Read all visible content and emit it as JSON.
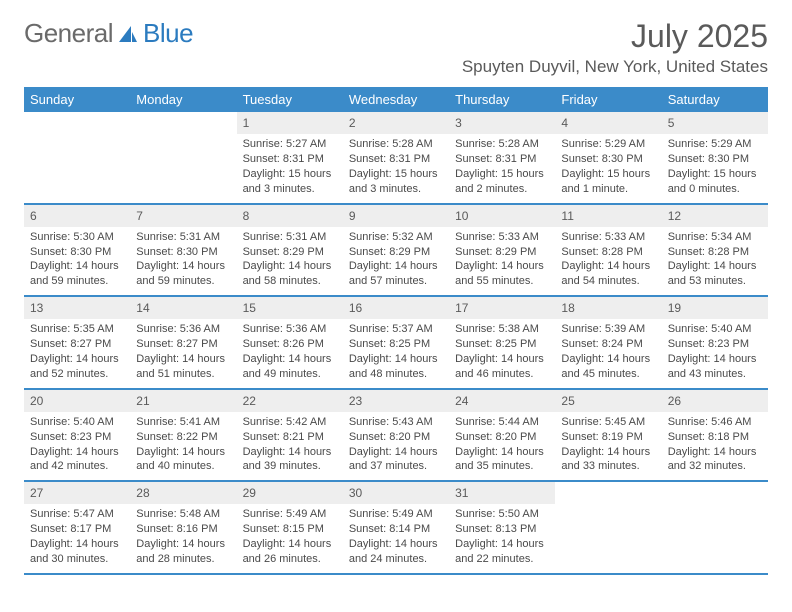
{
  "logo": {
    "part1": "General",
    "part2": "Blue"
  },
  "title": "July 2025",
  "location": "Spuyten Duyvil, New York, United States",
  "colors": {
    "header_bg": "#3b8bc9",
    "header_text": "#ffffff",
    "daynum_bg": "#eeeeee",
    "border": "#3b8bc9",
    "logo_gray": "#6a6a6a",
    "logo_blue": "#2b7bbf"
  },
  "weekdays": [
    "Sunday",
    "Monday",
    "Tuesday",
    "Wednesday",
    "Thursday",
    "Friday",
    "Saturday"
  ],
  "weeks": [
    [
      {
        "empty": true
      },
      {
        "empty": true
      },
      {
        "num": "1",
        "sunrise": "5:27 AM",
        "sunset": "8:31 PM",
        "daylight": "15 hours and 3 minutes."
      },
      {
        "num": "2",
        "sunrise": "5:28 AM",
        "sunset": "8:31 PM",
        "daylight": "15 hours and 3 minutes."
      },
      {
        "num": "3",
        "sunrise": "5:28 AM",
        "sunset": "8:31 PM",
        "daylight": "15 hours and 2 minutes."
      },
      {
        "num": "4",
        "sunrise": "5:29 AM",
        "sunset": "8:30 PM",
        "daylight": "15 hours and 1 minute."
      },
      {
        "num": "5",
        "sunrise": "5:29 AM",
        "sunset": "8:30 PM",
        "daylight": "15 hours and 0 minutes."
      }
    ],
    [
      {
        "num": "6",
        "sunrise": "5:30 AM",
        "sunset": "8:30 PM",
        "daylight": "14 hours and 59 minutes."
      },
      {
        "num": "7",
        "sunrise": "5:31 AM",
        "sunset": "8:30 PM",
        "daylight": "14 hours and 59 minutes."
      },
      {
        "num": "8",
        "sunrise": "5:31 AM",
        "sunset": "8:29 PM",
        "daylight": "14 hours and 58 minutes."
      },
      {
        "num": "9",
        "sunrise": "5:32 AM",
        "sunset": "8:29 PM",
        "daylight": "14 hours and 57 minutes."
      },
      {
        "num": "10",
        "sunrise": "5:33 AM",
        "sunset": "8:29 PM",
        "daylight": "14 hours and 55 minutes."
      },
      {
        "num": "11",
        "sunrise": "5:33 AM",
        "sunset": "8:28 PM",
        "daylight": "14 hours and 54 minutes."
      },
      {
        "num": "12",
        "sunrise": "5:34 AM",
        "sunset": "8:28 PM",
        "daylight": "14 hours and 53 minutes."
      }
    ],
    [
      {
        "num": "13",
        "sunrise": "5:35 AM",
        "sunset": "8:27 PM",
        "daylight": "14 hours and 52 minutes."
      },
      {
        "num": "14",
        "sunrise": "5:36 AM",
        "sunset": "8:27 PM",
        "daylight": "14 hours and 51 minutes."
      },
      {
        "num": "15",
        "sunrise": "5:36 AM",
        "sunset": "8:26 PM",
        "daylight": "14 hours and 49 minutes."
      },
      {
        "num": "16",
        "sunrise": "5:37 AM",
        "sunset": "8:25 PM",
        "daylight": "14 hours and 48 minutes."
      },
      {
        "num": "17",
        "sunrise": "5:38 AM",
        "sunset": "8:25 PM",
        "daylight": "14 hours and 46 minutes."
      },
      {
        "num": "18",
        "sunrise": "5:39 AM",
        "sunset": "8:24 PM",
        "daylight": "14 hours and 45 minutes."
      },
      {
        "num": "19",
        "sunrise": "5:40 AM",
        "sunset": "8:23 PM",
        "daylight": "14 hours and 43 minutes."
      }
    ],
    [
      {
        "num": "20",
        "sunrise": "5:40 AM",
        "sunset": "8:23 PM",
        "daylight": "14 hours and 42 minutes."
      },
      {
        "num": "21",
        "sunrise": "5:41 AM",
        "sunset": "8:22 PM",
        "daylight": "14 hours and 40 minutes."
      },
      {
        "num": "22",
        "sunrise": "5:42 AM",
        "sunset": "8:21 PM",
        "daylight": "14 hours and 39 minutes."
      },
      {
        "num": "23",
        "sunrise": "5:43 AM",
        "sunset": "8:20 PM",
        "daylight": "14 hours and 37 minutes."
      },
      {
        "num": "24",
        "sunrise": "5:44 AM",
        "sunset": "8:20 PM",
        "daylight": "14 hours and 35 minutes."
      },
      {
        "num": "25",
        "sunrise": "5:45 AM",
        "sunset": "8:19 PM",
        "daylight": "14 hours and 33 minutes."
      },
      {
        "num": "26",
        "sunrise": "5:46 AM",
        "sunset": "8:18 PM",
        "daylight": "14 hours and 32 minutes."
      }
    ],
    [
      {
        "num": "27",
        "sunrise": "5:47 AM",
        "sunset": "8:17 PM",
        "daylight": "14 hours and 30 minutes."
      },
      {
        "num": "28",
        "sunrise": "5:48 AM",
        "sunset": "8:16 PM",
        "daylight": "14 hours and 28 minutes."
      },
      {
        "num": "29",
        "sunrise": "5:49 AM",
        "sunset": "8:15 PM",
        "daylight": "14 hours and 26 minutes."
      },
      {
        "num": "30",
        "sunrise": "5:49 AM",
        "sunset": "8:14 PM",
        "daylight": "14 hours and 24 minutes."
      },
      {
        "num": "31",
        "sunrise": "5:50 AM",
        "sunset": "8:13 PM",
        "daylight": "14 hours and 22 minutes."
      },
      {
        "empty": true
      },
      {
        "empty": true
      }
    ]
  ],
  "labels": {
    "sunrise": "Sunrise:",
    "sunset": "Sunset:",
    "daylight": "Daylight:"
  }
}
